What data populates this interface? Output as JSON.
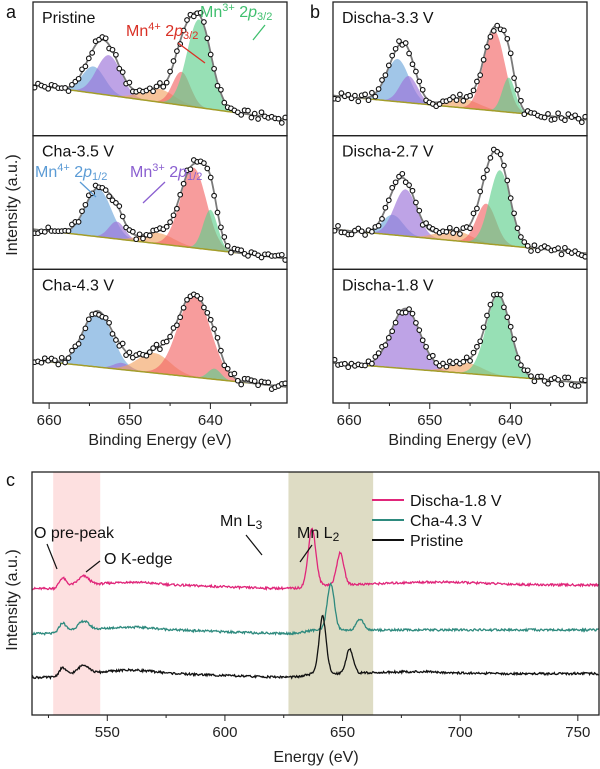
{
  "panel_labels": {
    "a": "a",
    "b": "b",
    "c": "c"
  },
  "colors": {
    "mn4_2p12": "#6fa8dc",
    "mn3_2p12": "#9b72d8",
    "satellite": "#f2a466",
    "mn4_2p32": "#f26767",
    "mn3_2p32": "#5fd08e",
    "background": "#a39d2a",
    "envelope": "#7a7a7a",
    "discha18": "#e0267a",
    "cha43": "#2e8a7e",
    "pristine": "#111111",
    "o_band": "#fde0e0",
    "mn_band": "#dedcc4"
  },
  "chart_data": [
    {
      "type": "area",
      "panel": "a",
      "xlabel": "Binding Energy (eV)",
      "ylabel": "Intensity (a.u.)",
      "xlim": [
        662,
        630.5
      ],
      "xticks": [
        660,
        650,
        640
      ],
      "minor_xticks": [
        655,
        645,
        635
      ],
      "subplots": [
        {
          "title": "Pristine",
          "bg": [
            0.38,
            0.12
          ],
          "components": [
            {
              "name": "Mn4+ 2p1/2",
              "color": "mn4_2p12",
              "center": 654.5,
              "height": 0.2,
              "width": 1.4
            },
            {
              "name": "Mn3+ 2p1/2",
              "color": "mn3_2p12",
              "center": 652.6,
              "height": 0.3,
              "width": 1.5
            },
            {
              "name": "satellite",
              "color": "satellite",
              "center": 646.5,
              "height": 0.1,
              "width": 2.0
            },
            {
              "name": "Mn4+ 2p3/2",
              "color": "mn4_2p32",
              "center": 643.6,
              "height": 0.25,
              "width": 1.1
            },
            {
              "name": "Mn3+ 2p3/2",
              "color": "mn3_2p32",
              "center": 641.4,
              "height": 0.66,
              "width": 1.5
            }
          ]
        },
        {
          "title": "Cha-3.5 V",
          "bg": [
            0.3,
            0.08
          ],
          "components": [
            {
              "name": "Mn4+ 2p1/2",
              "color": "mn4_2p12",
              "center": 653.9,
              "height": 0.36,
              "width": 1.6
            },
            {
              "name": "Mn3+ 2p1/2",
              "color": "mn3_2p12",
              "center": 651.6,
              "height": 0.13,
              "width": 1.0
            },
            {
              "name": "satellite",
              "color": "satellite",
              "center": 646.5,
              "height": 0.08,
              "width": 2.0
            },
            {
              "name": "Mn4+ 2p3/2",
              "color": "mn4_2p32",
              "center": 642.1,
              "height": 0.6,
              "width": 1.6
            },
            {
              "name": "Mn3+ 2p3/2",
              "color": "mn3_2p32",
              "center": 640.0,
              "height": 0.3,
              "width": 0.9
            }
          ]
        },
        {
          "title": "Cha-4.3 V",
          "bg": [
            0.32,
            0.12
          ],
          "components": [
            {
              "name": "Mn4+ 2p1/2",
              "color": "mn4_2p12",
              "center": 654.0,
              "height": 0.42,
              "width": 1.8
            },
            {
              "name": "Mn3+ 2p1/2",
              "color": "mn3_2p12",
              "center": 651.0,
              "height": 0.05,
              "width": 1.0
            },
            {
              "name": "satellite",
              "color": "satellite",
              "center": 647.0,
              "height": 0.15,
              "width": 2.0
            },
            {
              "name": "Mn4+ 2p3/2",
              "color": "mn4_2p32",
              "center": 642.0,
              "height": 0.62,
              "width": 2.0
            },
            {
              "name": "Mn3+ 2p3/2",
              "color": "mn3_2p32",
              "center": 639.5,
              "height": 0.08,
              "width": 0.8
            }
          ]
        }
      ],
      "annotations": [
        {
          "ion": "Mn",
          "charge": "4+",
          "num": " 2",
          "orb": "p",
          "sub": "3/2",
          "color": "mn4_2p32"
        },
        {
          "ion": "Mn",
          "charge": "3+",
          "num": " 2",
          "orb": "p",
          "sub": "3/2",
          "color": "mn3_2p32"
        },
        {
          "ion": "Mn",
          "charge": "4+",
          "num": " 2",
          "orb": "p",
          "sub": "1/2",
          "color": "mn4_2p12"
        },
        {
          "ion": "Mn",
          "charge": "3+",
          "num": " 2",
          "orb": "p",
          "sub": "1/2",
          "color": "mn3_2p12"
        }
      ]
    },
    {
      "type": "area",
      "panel": "b",
      "xlabel": "Binding Energy (eV)",
      "xlim": [
        662,
        630.5
      ],
      "xticks": [
        660,
        650,
        640
      ],
      "minor_xticks": [
        655,
        645,
        635
      ],
      "subplots": [
        {
          "title": "Discha-3.3 V",
          "bg": [
            0.3,
            0.12
          ],
          "components": [
            {
              "name": "Mn4+ 2p1/2",
              "color": "mn4_2p12",
              "center": 654.0,
              "height": 0.32,
              "width": 1.4
            },
            {
              "name": "Mn3+ 2p1/2",
              "color": "mn3_2p12",
              "center": 652.6,
              "height": 0.2,
              "width": 1.1
            },
            {
              "name": "satellite",
              "color": "satellite",
              "center": 646.0,
              "height": 0.07,
              "width": 2.0
            },
            {
              "name": "Mn4+ 2p3/2",
              "color": "mn4_2p32",
              "center": 642.0,
              "height": 0.6,
              "width": 1.3
            },
            {
              "name": "Mn3+ 2p3/2",
              "color": "mn3_2p32",
              "center": 640.2,
              "height": 0.26,
              "width": 0.8
            }
          ]
        },
        {
          "title": "Discha-2.7 V",
          "bg": [
            0.3,
            0.12
          ],
          "components": [
            {
              "name": "Mn4+ 2p1/2",
              "color": "mn4_2p12",
              "center": 654.6,
              "height": 0.15,
              "width": 1.3
            },
            {
              "name": "Mn3+ 2p1/2",
              "color": "mn3_2p12",
              "center": 653.0,
              "height": 0.35,
              "width": 1.4
            },
            {
              "name": "satellite",
              "color": "satellite",
              "center": 647.0,
              "height": 0.08,
              "width": 2.0
            },
            {
              "name": "Mn4+ 2p3/2",
              "color": "mn4_2p32",
              "center": 643.0,
              "height": 0.3,
              "width": 1.2
            },
            {
              "name": "Mn3+ 2p3/2",
              "color": "mn3_2p32",
              "center": 641.3,
              "height": 0.56,
              "width": 1.3
            }
          ]
        },
        {
          "title": "Discha-1.8 V",
          "bg": [
            0.3,
            0.15
          ],
          "components": [
            {
              "name": "Mn3+ 2p1/2",
              "color": "mn3_2p12",
              "center": 653.0,
              "height": 0.45,
              "width": 1.8
            },
            {
              "name": "satellite",
              "color": "satellite",
              "center": 645.5,
              "height": 0.08,
              "width": 2.0
            },
            {
              "name": "Mn3+ 2p3/2",
              "color": "mn3_2p32",
              "center": 641.5,
              "height": 0.6,
              "width": 1.5
            }
          ]
        }
      ]
    },
    {
      "type": "line",
      "panel": "c",
      "xlabel": "Energy (eV)",
      "ylabel": "Intensity (a.u.)",
      "xlim": [
        518,
        759
      ],
      "ylim": [
        0,
        10
      ],
      "xticks": [
        550,
        600,
        650,
        700,
        750
      ],
      "minor_xticks": [
        525,
        575,
        625,
        675,
        725
      ],
      "legend": "top-right",
      "shaded_regions": [
        {
          "range": [
            527,
            547
          ],
          "color": "o_band"
        },
        {
          "range": [
            627,
            663
          ],
          "color": "mn_band"
        }
      ],
      "annotations": [
        {
          "text": "O pre-peak",
          "x": 531
        },
        {
          "text": "O K-edge",
          "x": 540
        },
        {
          "text": "Mn L",
          "sub": "3",
          "x": 637
        },
        {
          "text": "Mn L",
          "sub": "2",
          "x": 649
        }
      ],
      "series": [
        {
          "name": "Discha-1.8 V",
          "color": "discha18",
          "baseline": 5.2,
          "peaks": [
            [
              531,
              0.3,
              1.3
            ],
            [
              540,
              0.35,
              2.2
            ],
            [
              560,
              0.12,
              10
            ],
            [
              637,
              2.35,
              1.6
            ],
            [
              649,
              1.3,
              1.5
            ],
            [
              690,
              0.12,
              20
            ]
          ]
        },
        {
          "name": "Cha-4.3 V",
          "color": "cha43",
          "baseline": 3.35,
          "peaks": [
            [
              531,
              0.3,
              1.3
            ],
            [
              540,
              0.35,
              2.2
            ],
            [
              560,
              0.12,
              10
            ],
            [
              645,
              1.9,
              1.5
            ],
            [
              657.5,
              0.45,
              1.5
            ]
          ]
        },
        {
          "name": "Pristine",
          "color": "pristine",
          "baseline": 1.55,
          "peaks": [
            [
              531,
              0.25,
              1.3
            ],
            [
              540,
              0.35,
              2.2
            ],
            [
              560,
              0.15,
              10
            ],
            [
              641.5,
              2.35,
              1.5
            ],
            [
              653,
              1.0,
              1.5
            ],
            [
              680,
              0.08,
              15
            ]
          ]
        }
      ]
    }
  ]
}
